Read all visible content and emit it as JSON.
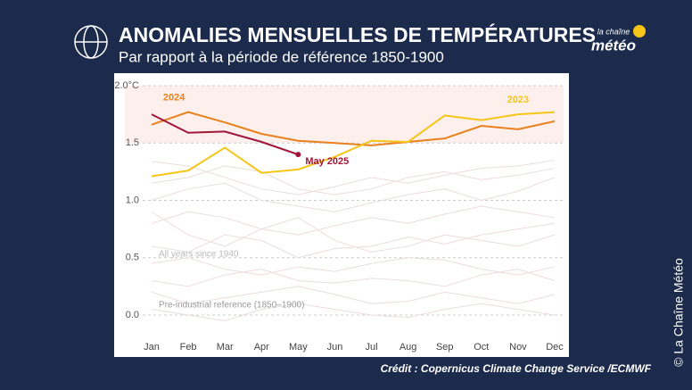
{
  "header": {
    "title": "ANOMALIES MENSUELLES DE TEMPÉRATURES",
    "subtitle": "Par rapport à la période de référence 1850-1900",
    "logo_top": "la chaîne",
    "logo_bottom": "météo"
  },
  "footer": {
    "credit": "Crédit : Copernicus Climate Change Service /ECMWF",
    "copyright": "© La Chaîne Météo"
  },
  "chart_data": {
    "type": "line",
    "categories": [
      "Jan",
      "Feb",
      "Mar",
      "Apr",
      "May",
      "Jun",
      "Jul",
      "Aug",
      "Sep",
      "Oct",
      "Nov",
      "Dec"
    ],
    "series": [
      {
        "name": "2024",
        "color": "#e8801e",
        "values": [
          1.66,
          1.77,
          1.68,
          1.58,
          1.52,
          1.5,
          1.48,
          1.51,
          1.54,
          1.65,
          1.62,
          1.69
        ]
      },
      {
        "name": "2023",
        "color": "#f5c518",
        "values": [
          1.21,
          1.26,
          1.46,
          1.24,
          1.27,
          1.38,
          1.52,
          1.51,
          1.74,
          1.7,
          1.75,
          1.77
        ]
      },
      {
        "name": "May 2025",
        "color": "#a0173a",
        "values": [
          1.75,
          1.59,
          1.6,
          1.51,
          1.4,
          null,
          null,
          null,
          null,
          null,
          null,
          null
        ]
      }
    ],
    "background_series": {
      "color": "#eddcdc",
      "values": [
        [
          1.34,
          1.3,
          1.2,
          1.1,
          1.05,
          1.12,
          1.2,
          1.15,
          1.22,
          1.28,
          1.3,
          1.35
        ],
        [
          1.0,
          1.1,
          1.15,
          1.0,
          0.95,
          0.9,
          0.98,
          1.05,
          1.1,
          1.0,
          1.08,
          1.2
        ],
        [
          0.8,
          0.9,
          0.85,
          0.75,
          0.7,
          0.78,
          0.85,
          0.8,
          0.88,
          0.95,
          0.9,
          0.85
        ],
        [
          0.6,
          0.55,
          0.7,
          0.65,
          0.5,
          0.58,
          0.6,
          0.68,
          0.62,
          0.7,
          0.75,
          0.8
        ],
        [
          0.45,
          0.5,
          0.4,
          0.35,
          0.42,
          0.38,
          0.45,
          0.5,
          0.48,
          0.4,
          0.35,
          0.42
        ],
        [
          0.3,
          0.25,
          0.35,
          0.4,
          0.3,
          0.28,
          0.32,
          0.3,
          0.25,
          0.35,
          0.4,
          0.3
        ],
        [
          0.2,
          0.1,
          0.15,
          0.2,
          0.25,
          0.18,
          0.1,
          0.12,
          0.2,
          0.15,
          0.1,
          0.18
        ],
        [
          0.05,
          0.0,
          -0.05,
          0.05,
          0.1,
          0.05,
          0.0,
          -0.02,
          0.05,
          0.1,
          0.05,
          0.0
        ],
        [
          0.9,
          0.7,
          0.6,
          0.75,
          0.85,
          0.65,
          0.55,
          0.6,
          0.7,
          0.65,
          0.6,
          0.7
        ],
        [
          1.15,
          1.2,
          1.3,
          1.25,
          1.1,
          1.05,
          1.1,
          1.2,
          1.25,
          1.18,
          1.22,
          1.28
        ]
      ]
    },
    "annotations": [
      "All years since 1940",
      "Pre-industrial reference (1850–1900)"
    ],
    "band": {
      "from": 1.5,
      "to": 2.0,
      "color": "#fdf0ec"
    },
    "ylim": [
      -0.1,
      2.05
    ],
    "yticks": [
      {
        "value": 0,
        "label": "0.0"
      },
      0.5,
      {
        "value": 1,
        "label": "1.0"
      },
      1.5,
      {
        "value": 2,
        "label": "2.0°C"
      }
    ],
    "grid": true
  }
}
